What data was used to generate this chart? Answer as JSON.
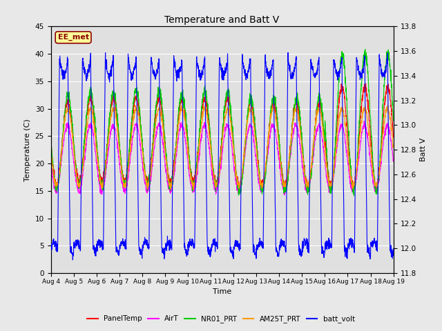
{
  "title": "Temperature and Batt V",
  "xlabel": "Time",
  "ylabel_left": "Temperature (C)",
  "ylabel_right": "Batt V",
  "station_label": "EE_met",
  "ylim_left": [
    0,
    45
  ],
  "ylim_right": [
    11.8,
    13.8
  ],
  "temp_yticks": [
    0,
    5,
    10,
    15,
    20,
    25,
    30,
    35,
    40,
    45
  ],
  "batt_yticks": [
    11.8,
    12.0,
    12.2,
    12.4,
    12.6,
    12.8,
    13.0,
    13.2,
    13.4,
    13.6,
    13.8
  ],
  "xtick_labels": [
    "Aug 4",
    "Aug 5",
    "Aug 6",
    "Aug 7",
    "Aug 8",
    "Aug 9",
    "Aug 10",
    "Aug 11",
    "Aug 12",
    "Aug 13",
    "Aug 14",
    "Aug 15",
    "Aug 16",
    "Aug 17",
    "Aug 18",
    "Aug 19"
  ],
  "colors": {
    "PanelTemp": "#ff0000",
    "AirT": "#ff00ff",
    "NR01_PRT": "#00cc00",
    "AM25T_PRT": "#ff9900",
    "batt_volt": "#0000ff"
  },
  "background_color": "#e8e8e8",
  "plot_bg_color": "#e0e0e0",
  "grid_color": "#ffffff",
  "num_days": 15,
  "pts_per_day": 144
}
